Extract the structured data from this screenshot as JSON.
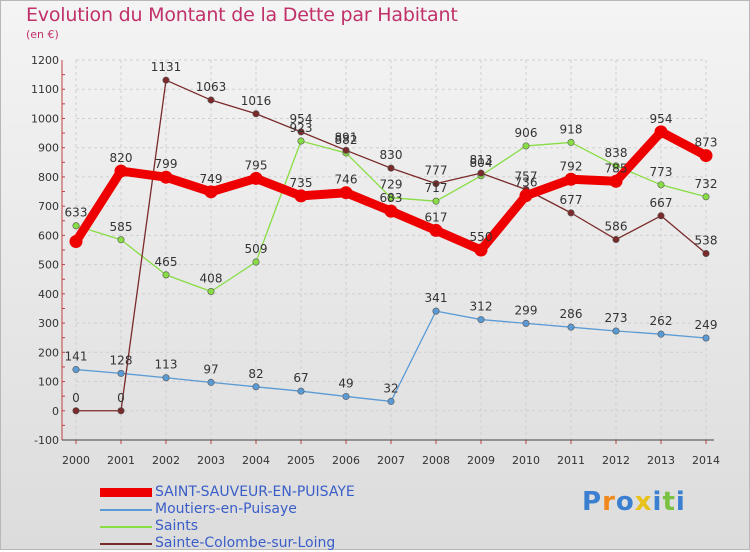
{
  "title": "Evolution du Montant de la Dette par Habitant",
  "subtitle": "(en €)",
  "logo_text": "Proxiti",
  "chart_data": {
    "type": "line",
    "title": "Evolution du Montant de la Dette par Habitant",
    "subtitle": "(en €)",
    "xlabel": "",
    "ylabel": "",
    "ylim": [
      -100,
      1200
    ],
    "ytick_step": 100,
    "grid": true,
    "legend_position": "bottom-left",
    "x": [
      2000,
      2001,
      2002,
      2003,
      2004,
      2005,
      2006,
      2007,
      2008,
      2009,
      2010,
      2011,
      2012,
      2013,
      2014
    ],
    "series": [
      {
        "name": "SAINT-SAUVEUR-EN-PUISAYE",
        "color": "#ee0000",
        "values": [
          579,
          820,
          799,
          749,
          795,
          735,
          746,
          683,
          617,
          550,
          736,
          792,
          785,
          954,
          873
        ],
        "labels": [
          "",
          "820",
          "799",
          "749",
          "795",
          "735",
          "746",
          "683",
          "617",
          "550",
          "736",
          "792",
          "785",
          "954",
          "873"
        ]
      },
      {
        "name": "Moutiers-en-Puisaye",
        "color": "#5b9bd5",
        "values": [
          141,
          128,
          113,
          97,
          82,
          67,
          49,
          32,
          341,
          312,
          299,
          286,
          273,
          262,
          249
        ],
        "labels": [
          "141",
          "128",
          "113",
          "97",
          "82",
          "67",
          "49",
          "32",
          "341",
          "312",
          "299",
          "286",
          "273",
          "262",
          "249"
        ]
      },
      {
        "name": "Saints",
        "color": "#88dd44",
        "values": [
          633,
          585,
          465,
          408,
          509,
          923,
          882,
          729,
          717,
          804,
          906,
          918,
          838,
          773,
          732
        ],
        "labels": [
          "633",
          "585",
          "465",
          "408",
          "509",
          "923",
          "882",
          "729",
          "717",
          "804",
          "906",
          "918",
          "838",
          "773",
          "732"
        ]
      },
      {
        "name": "Sainte-Colombe-sur-Loing",
        "color": "#7a2a2a",
        "values": [
          0,
          0,
          1131,
          1063,
          1016,
          954,
          891,
          830,
          777,
          813,
          757,
          677,
          586,
          667,
          538
        ],
        "labels": [
          "0",
          "0",
          "1131",
          "1063",
          "1016",
          "954",
          "891",
          "830",
          "777",
          "813",
          "757",
          "677",
          "586",
          "667",
          "538"
        ]
      }
    ]
  }
}
